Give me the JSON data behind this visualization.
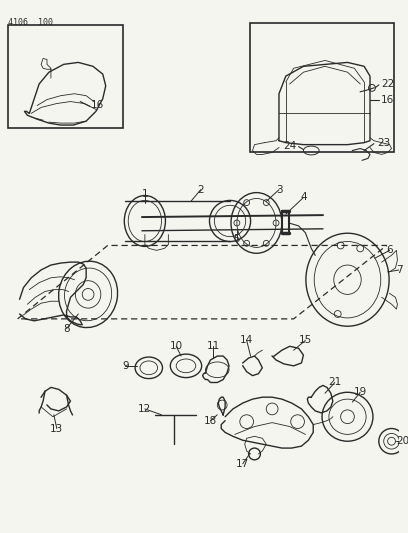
{
  "title": "4106  100",
  "bg_color": "#f5f5f0",
  "line_color": "#2a2a2a",
  "fig_width": 4.08,
  "fig_height": 5.33,
  "dpi": 100
}
